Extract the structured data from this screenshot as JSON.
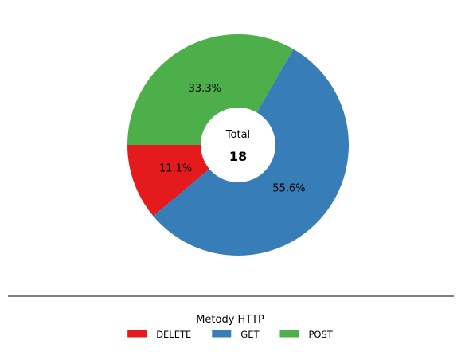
{
  "chart_data": {
    "type": "pie",
    "donut": true,
    "categories": [
      "DELETE",
      "GET",
      "POST"
    ],
    "values": [
      2,
      10,
      6
    ],
    "percent_labels": [
      "11.1%",
      "55.6%",
      "33.3%"
    ],
    "colors": [
      "#e41a1c",
      "#377eb8",
      "#4daf4a"
    ],
    "center_caption": "Total",
    "center_value": "18",
    "legend_title": "Metody HTTP",
    "legend_position": "bottom"
  }
}
